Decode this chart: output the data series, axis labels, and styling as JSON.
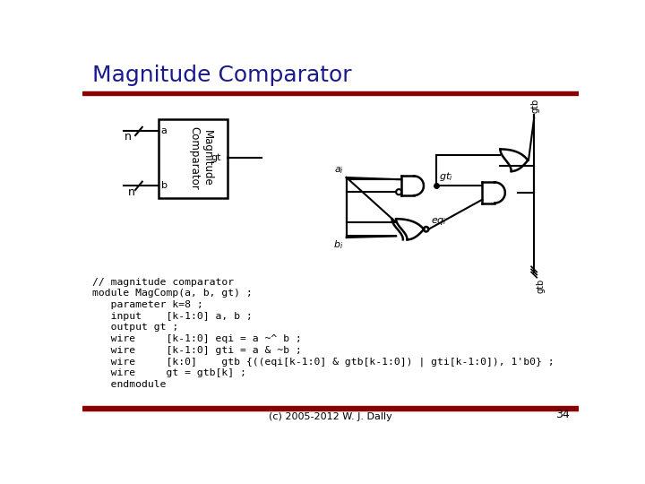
{
  "title": "Magnitude Comparator",
  "title_color": "#1a1a8c",
  "title_fontsize": 18,
  "bg_color": "#ffffff",
  "bar_color": "#8b0000",
  "footer_text": "(c) 2005-2012 W. J. Dally",
  "page_num": "34",
  "code_lines": [
    "// magnitude comparator",
    "module MagComp(a, b, gt) ;",
    "   parameter k=8 ;",
    "   input    [k-1:0] a, b ;",
    "   output gt ;",
    "   wire     [k-1:0] eqi = a ~^ b ;",
    "   wire     [k-1:0] gti = a & ~b ;",
    "   wire     [k:0]    gtb {((eqi[k-1:0] & gtb[k-1:0]) | gti[k-1:0]), 1'b0} ;",
    "   wire     gt = gtb[k] ;",
    "   endmodule"
  ]
}
